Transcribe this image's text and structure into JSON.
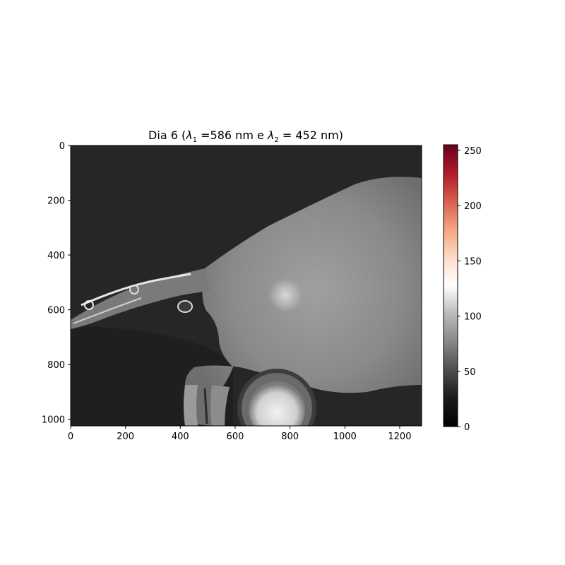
{
  "figure": {
    "title_prefix": "Dia 6 (",
    "lambda1_base": "λ",
    "lambda1_sub": "1",
    "lambda1_value": " =586 nm e ",
    "lambda2_base": "λ",
    "lambda2_sub": "2",
    "lambda2_value": " = 452 nm)"
  },
  "image_axes": {
    "x_ticks": [
      "0",
      "200",
      "400",
      "600",
      "800",
      "1000",
      "1200"
    ],
    "y_ticks": [
      "0",
      "200",
      "400",
      "600",
      "800",
      "1000"
    ],
    "x_range": [
      0,
      1280
    ],
    "y_range": [
      0,
      1024
    ]
  },
  "colorbar": {
    "ticks": [
      "0",
      "50",
      "100",
      "150",
      "200",
      "250"
    ],
    "range": [
      0,
      255
    ],
    "colormap": "RdGy_r",
    "colors": [
      "#1a1a1a",
      "#4d4d4d",
      "#878787",
      "#bababa",
      "#e0e0e0",
      "#ffffff",
      "#fddbc7",
      "#f4a582",
      "#d6604d",
      "#b2182b",
      "#67001f"
    ]
  }
}
